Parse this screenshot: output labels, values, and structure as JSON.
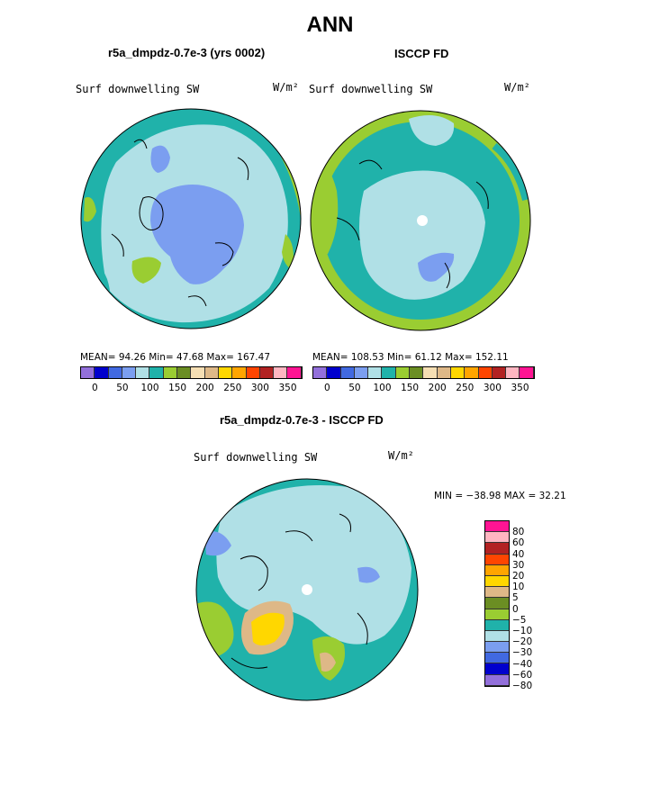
{
  "figure": {
    "title": "ANN",
    "panels": [
      {
        "id": "model",
        "title": "r5a_dmpdz-0.7e-3 (yrs 0002)",
        "variable": "Surf downwelling SW",
        "units": "W/m²",
        "stats": "MEAN=  94.26   Min=  47.68   Max= 167.47"
      },
      {
        "id": "obs",
        "title": "ISCCP FD",
        "variable": "Surf downwelling SW",
        "units": "W/m²",
        "stats": "MEAN=  108.53   Min=  61.12   Max=  152.11"
      },
      {
        "id": "diff",
        "title": "r5a_dmpdz-0.7e-3 - ISCCP FD",
        "variable": "Surf downwelling SW",
        "units": "W/m²",
        "stats": "MIN = −38.98  MAX =   32.21"
      }
    ]
  },
  "chart_data": [
    {
      "type": "heatmap",
      "projection": "north polar stereographic",
      "title": "r5a_dmpdz-0.7e-3 (yrs 0002)",
      "variable": "Surf downwelling SW",
      "units": "W/m²",
      "mean": 94.26,
      "min": 47.68,
      "max": 167.47,
      "colorbar": {
        "orientation": "horizontal",
        "tick_labels": [
          "0",
          "50",
          "100",
          "150",
          "200",
          "250",
          "300",
          "350"
        ],
        "colors": [
          "#9370db",
          "#0000cd",
          "#4169e1",
          "#7b9ef0",
          "#b0e0e6",
          "#20b2aa",
          "#9acd32",
          "#6b8e23",
          "#f5deb3",
          "#deb887",
          "#ffd700",
          "#ffa500",
          "#ff4500",
          "#b22222",
          "#ffb6c1",
          "#ff1493"
        ]
      }
    },
    {
      "type": "heatmap",
      "projection": "north polar stereographic",
      "title": "ISCCP FD",
      "variable": "Surf downwelling SW",
      "units": "W/m²",
      "mean": 108.53,
      "min": 61.12,
      "max": 152.11,
      "colorbar": {
        "orientation": "horizontal",
        "tick_labels": [
          "0",
          "50",
          "100",
          "150",
          "200",
          "250",
          "300",
          "350"
        ],
        "colors": [
          "#9370db",
          "#0000cd",
          "#4169e1",
          "#7b9ef0",
          "#b0e0e6",
          "#20b2aa",
          "#9acd32",
          "#6b8e23",
          "#f5deb3",
          "#deb887",
          "#ffd700",
          "#ffa500",
          "#ff4500",
          "#b22222",
          "#ffb6c1",
          "#ff1493"
        ]
      }
    },
    {
      "type": "heatmap",
      "projection": "north polar stereographic",
      "title": "r5a_dmpdz-0.7e-3 - ISCCP FD",
      "variable": "Surf downwelling SW",
      "units": "W/m²",
      "min": -38.98,
      "max": 32.21,
      "colorbar": {
        "orientation": "vertical",
        "tick_labels": [
          "80",
          "60",
          "40",
          "30",
          "20",
          "10",
          "5",
          "0",
          "−5",
          "−10",
          "−20",
          "−30",
          "−40",
          "−60",
          "−80"
        ],
        "colors": [
          "#ff1493",
          "#ffb6c1",
          "#b22222",
          "#ff4500",
          "#ffa500",
          "#ffd700",
          "#deb887",
          "#6b8e23",
          "#9acd32",
          "#20b2aa",
          "#b0e0e6",
          "#7b9ef0",
          "#4169e1",
          "#0000cd",
          "#9370db"
        ]
      }
    }
  ]
}
